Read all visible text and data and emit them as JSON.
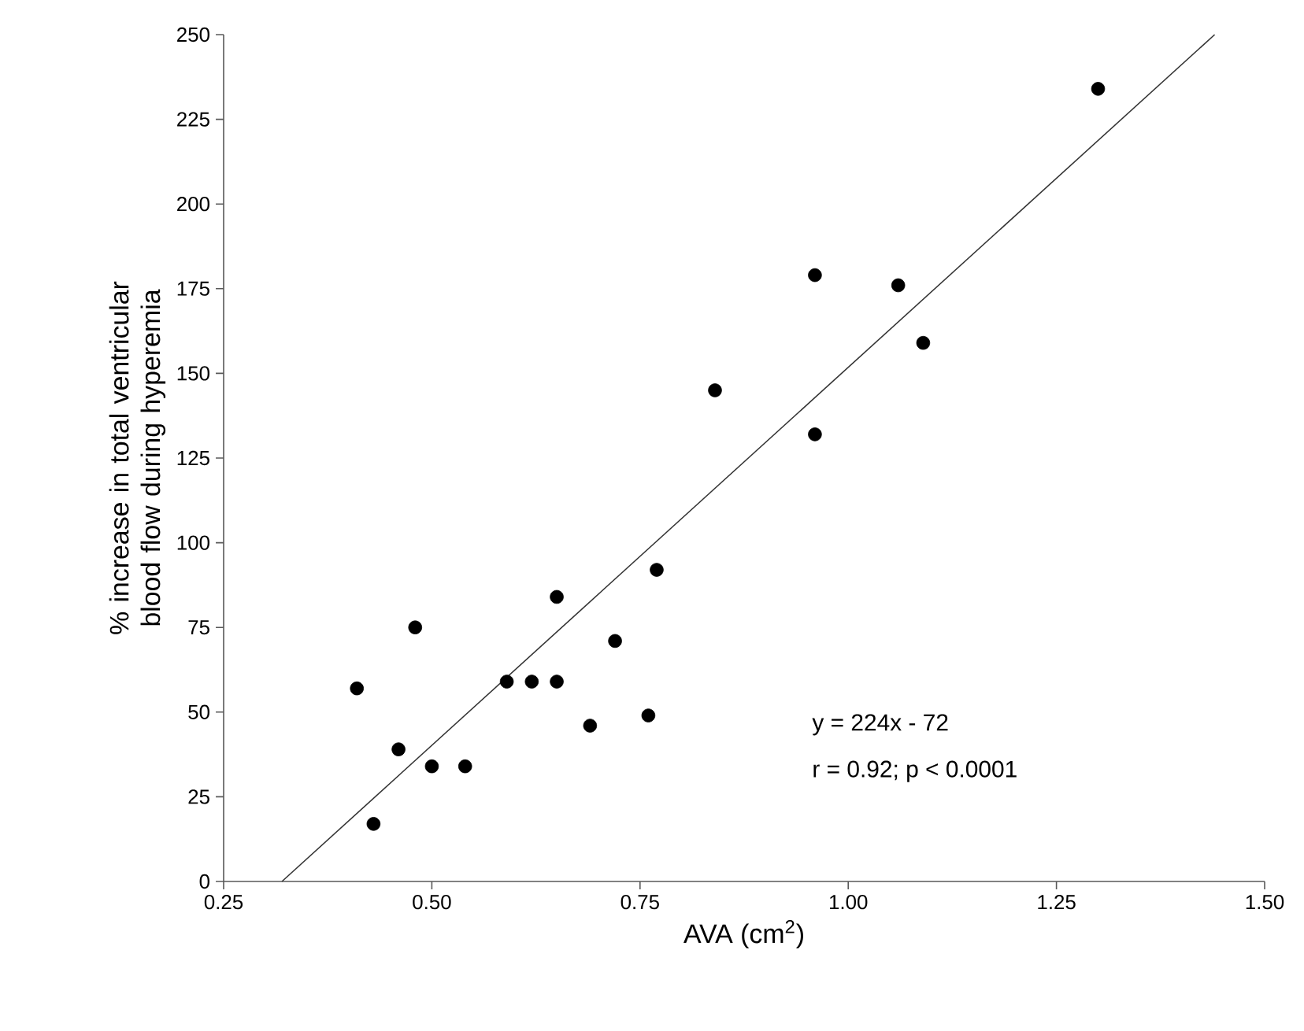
{
  "chart_data": {
    "type": "scatter",
    "xlabel": "AVA (cm$^{2}$)",
    "ylabel": "% increase in total ventricular blood flow during hyperemia",
    "xlim": [
      0.25,
      1.5
    ],
    "ylim": [
      0,
      250
    ],
    "xticks": [
      {
        "value": 0.25,
        "label": "0.25"
      },
      {
        "value": 0.5,
        "label": "0.50"
      },
      {
        "value": 0.75,
        "label": "0.75"
      },
      {
        "value": 1.0,
        "label": "1.00"
      },
      {
        "value": 1.25,
        "label": "1.25"
      },
      {
        "value": 1.5,
        "label": "1.50"
      }
    ],
    "yticks": [
      0,
      25,
      50,
      75,
      100,
      125,
      150,
      175,
      200,
      225,
      250
    ],
    "marker": "circle",
    "grid": false,
    "annotations": [
      "y = 224x - 72",
      "r = 0.92; p < 0.0001"
    ],
    "series": [
      {
        "color": "#000000",
        "x": [
          0.41,
          0.43,
          0.48,
          0.46,
          0.5,
          0.54,
          0.59,
          0.62,
          0.65,
          0.65,
          0.69,
          0.72,
          0.76,
          0.77,
          0.84,
          0.96,
          0.96,
          1.06,
          1.09,
          1.3
        ],
        "values": [
          57,
          17,
          75,
          39,
          34,
          34,
          59,
          59,
          59,
          84,
          46,
          71,
          49,
          92,
          145,
          132,
          179,
          176,
          159,
          234
        ]
      },
      {
        "type": "line",
        "color": "#333333",
        "line_style": "solid",
        "marker": "none",
        "x": [
          0.32,
          1.44
        ],
        "values": [
          0,
          250
        ]
      }
    ]
  }
}
